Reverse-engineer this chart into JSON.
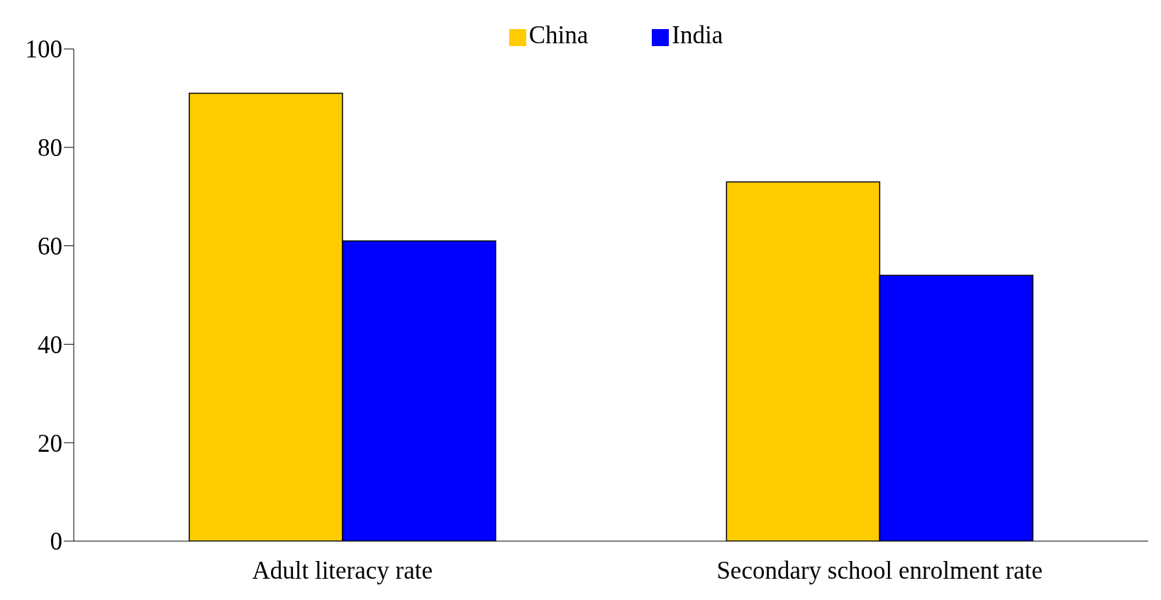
{
  "chart_data": {
    "type": "bar",
    "categories": [
      "Adult literacy rate",
      "Secondary school enrolment rate"
    ],
    "series": [
      {
        "name": "China",
        "color": "#ffcc00",
        "values": [
          91,
          73
        ]
      },
      {
        "name": "India",
        "color": "#0000ff",
        "values": [
          61,
          54
        ]
      }
    ],
    "ylim": [
      0,
      100
    ],
    "yticks": [
      0,
      20,
      40,
      60,
      80,
      100
    ],
    "grid": false,
    "legend": "top"
  }
}
